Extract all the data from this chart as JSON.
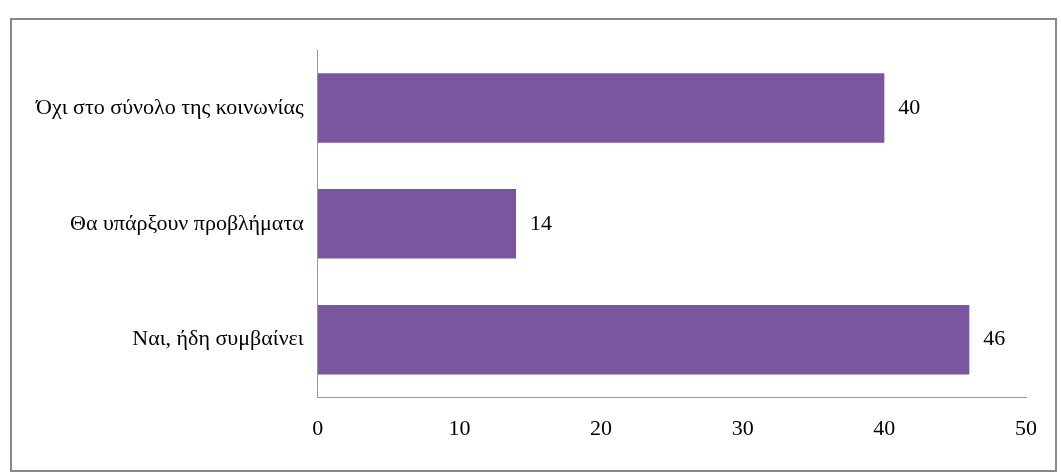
{
  "chart_data": {
    "type": "bar",
    "orientation": "horizontal",
    "categories": [
      "Όχι στο σύνολο της κοινωνίας",
      "Θα υπάρξουν προβλήματα",
      "Ναι, ήδη συμβαίνει"
    ],
    "values": [
      40,
      14,
      46
    ],
    "color": "#7a55a0",
    "xlim": [
      0,
      50
    ],
    "xticks": [
      0,
      10,
      20,
      30,
      40,
      50
    ],
    "data_labels": true,
    "grid": false,
    "legend": false
  }
}
